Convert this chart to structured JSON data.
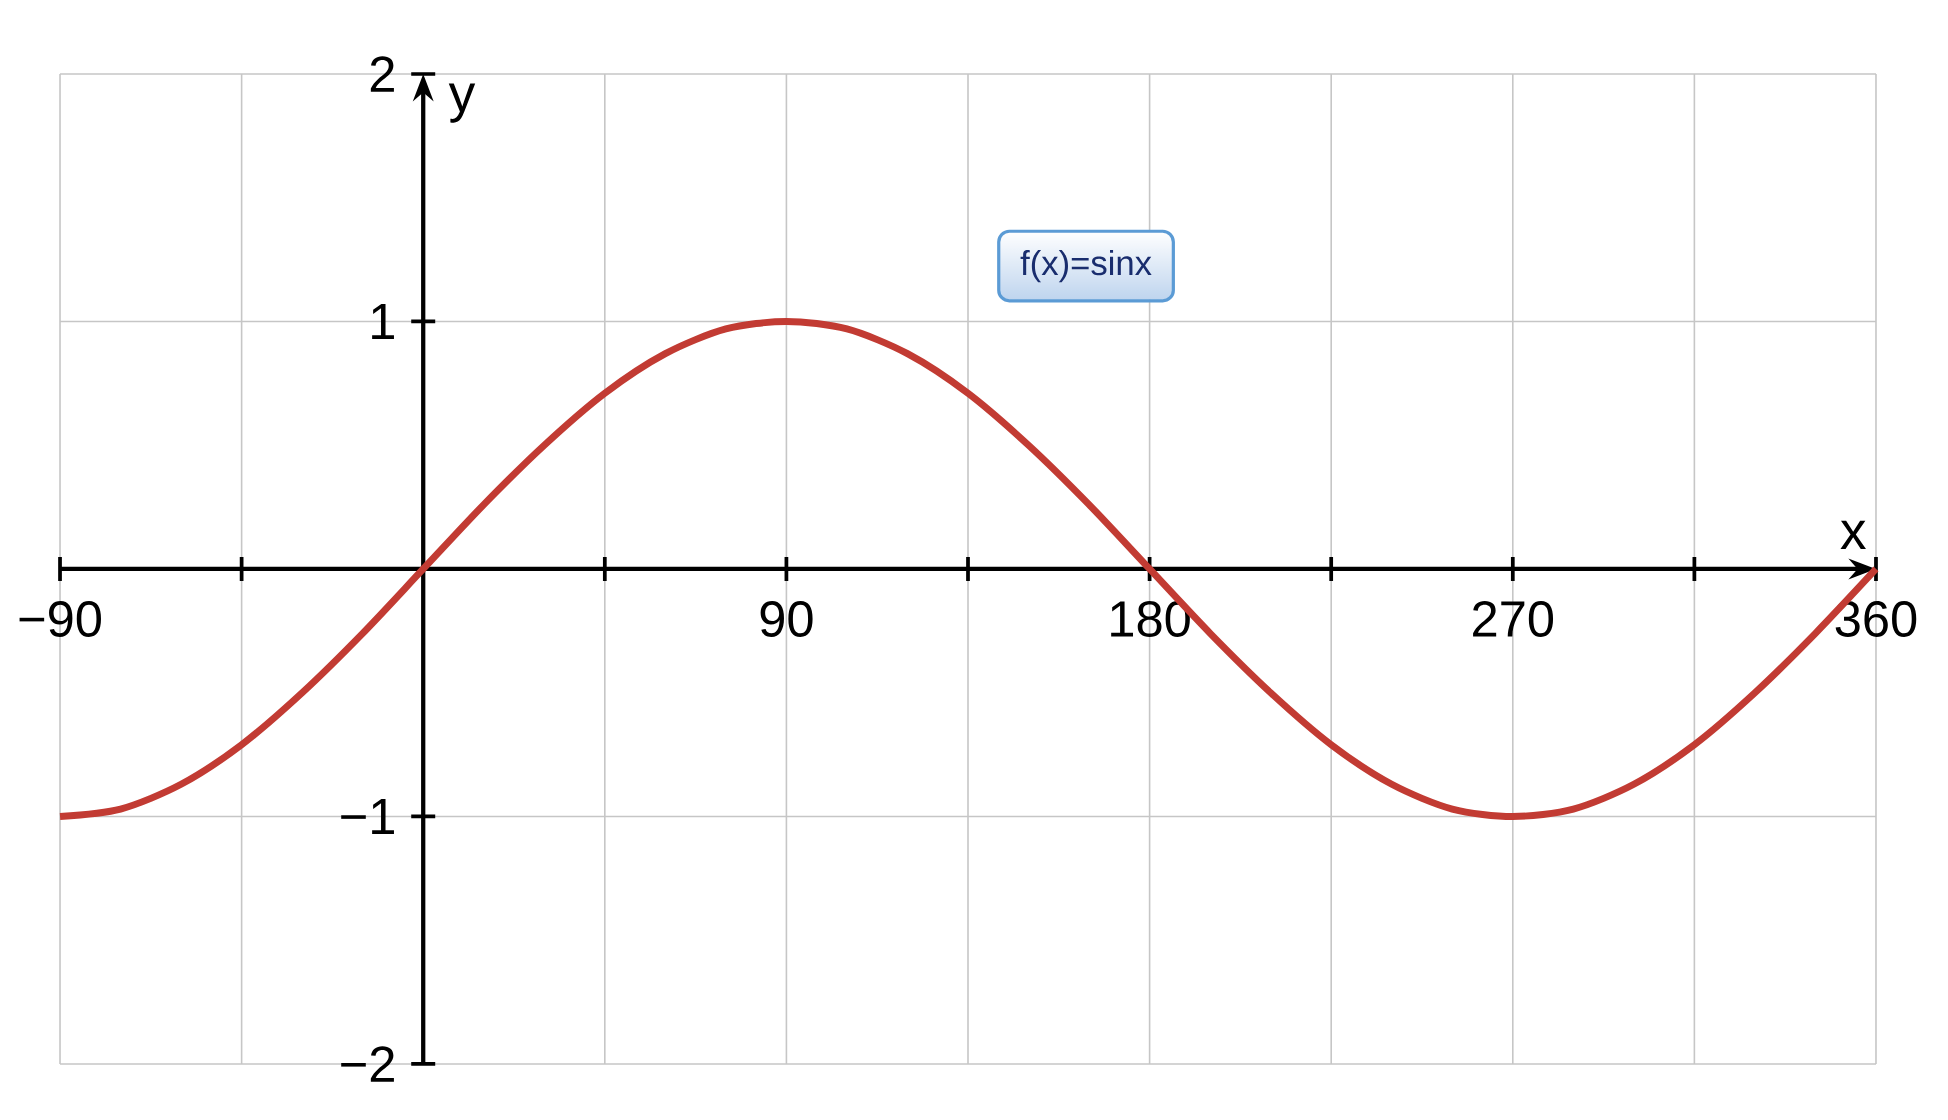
{
  "chart_data": {
    "type": "line",
    "xlabel": "x",
    "ylabel": "y",
    "x": [
      -90,
      -75,
      -60,
      -45,
      -30,
      -15,
      0,
      15,
      30,
      45,
      60,
      75,
      90,
      105,
      120,
      135,
      150,
      165,
      180,
      195,
      210,
      225,
      240,
      255,
      270,
      285,
      300,
      315,
      330,
      345,
      360
    ],
    "series": [
      {
        "color": "#c23b33",
        "values": [
          -1,
          -0.97,
          -0.87,
          -0.71,
          -0.5,
          -0.26,
          0,
          0.26,
          0.5,
          0.71,
          0.87,
          0.97,
          1,
          0.97,
          0.87,
          0.71,
          0.5,
          0.26,
          0,
          -0.26,
          -0.5,
          -0.71,
          -0.87,
          -0.97,
          -1,
          -0.97,
          -0.87,
          -0.71,
          -0.5,
          -0.26,
          0
        ]
      }
    ],
    "xlim": [
      -90,
      360
    ],
    "ylim": [
      -2,
      2
    ],
    "xticks": [
      {
        "value": -90,
        "label": "−90"
      },
      {
        "value": -45,
        "label": null
      },
      {
        "value": 0,
        "label": null
      },
      {
        "value": 45,
        "label": null
      },
      90,
      {
        "value": 135,
        "label": null
      },
      180,
      {
        "value": 225,
        "label": null
      },
      270,
      {
        "value": 315,
        "label": null
      },
      360
    ],
    "yticks": [
      {
        "value": -2,
        "label": "−2"
      },
      {
        "value": -1,
        "label": "−1"
      },
      1,
      2
    ],
    "grid": true,
    "marker": "none",
    "line_style": "solid",
    "annotations": [
      "f(x)=sinx"
    ]
  }
}
